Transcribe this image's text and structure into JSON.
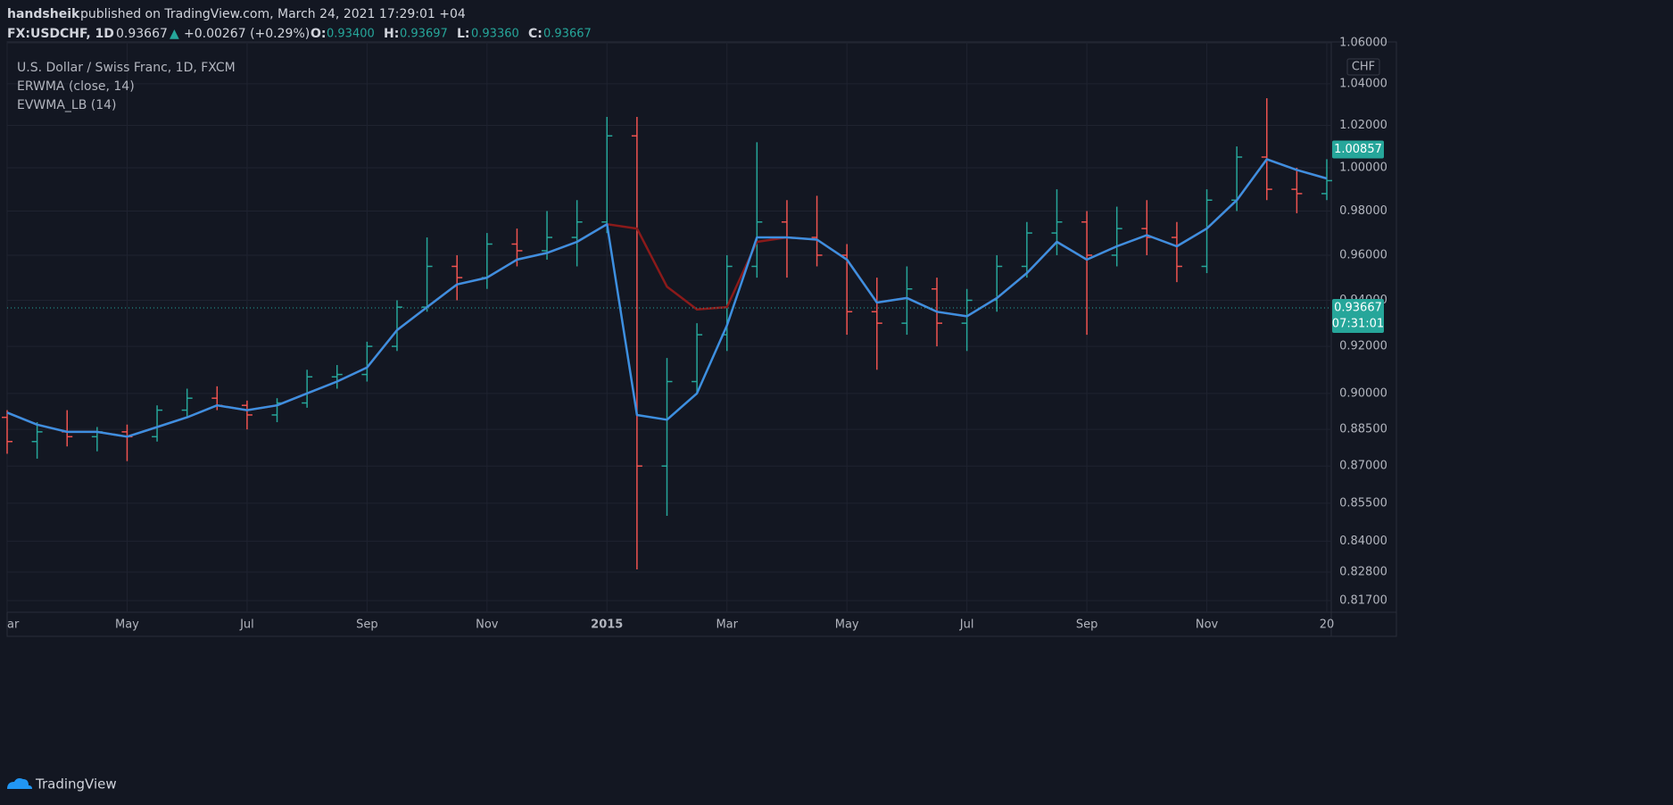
{
  "header": {
    "author": "handsheik",
    "published": "published on TradingView.com, March 24, 2021 17:29:01 +04",
    "symbol": "FX:USDCHF, 1D",
    "price": "0.93667",
    "arrow": "▲",
    "change": "+0.00267 (+0.29%)",
    "o_label": "O:",
    "o": "0.93400",
    "h_label": "H:",
    "h": "0.93697",
    "l_label": "L:",
    "l": "0.93360",
    "c_label": "C:",
    "c": "0.93667"
  },
  "footer": {
    "brand": "TradingView"
  },
  "chart_data": {
    "type": "ohlc",
    "title": "U.S. Dollar / Swiss Franc, 1D, FXCM",
    "currency": "CHF",
    "log_scale": true,
    "grid": true,
    "categories": [
      "ar",
      null,
      null,
      null,
      "May",
      null,
      null,
      null,
      "Jul",
      null,
      null,
      null,
      "Sep",
      null,
      null,
      null,
      "Nov",
      null,
      null,
      null,
      "2015",
      null,
      null,
      null,
      "Mar",
      null,
      null,
      null,
      "May",
      null,
      null,
      null,
      "Jul",
      null,
      null,
      null,
      "Sep",
      null,
      null,
      null,
      "Nov",
      null,
      null,
      null,
      "20"
    ],
    "ohlc": {
      "up_color": "#26a69a",
      "down_color": "#ef5350",
      "open": [
        0.89,
        0.88,
        0.884,
        0.882,
        0.884,
        0.882,
        0.893,
        0.898,
        0.895,
        0.891,
        0.896,
        0.907,
        0.908,
        0.92,
        0.937,
        0.955,
        0.95,
        0.965,
        0.962,
        0.968,
        0.975,
        1.015,
        0.87,
        0.905,
        0.925,
        0.955,
        0.975,
        0.968,
        0.96,
        0.935,
        0.93,
        0.945,
        0.93,
        0.94,
        0.955,
        0.97,
        0.975,
        0.96,
        0.972,
        0.968,
        0.955,
        0.985,
        1.005,
        0.99,
        0.988
      ],
      "high": [
        0.893,
        0.888,
        0.893,
        0.886,
        0.887,
        0.895,
        0.902,
        0.903,
        0.897,
        0.898,
        0.91,
        0.912,
        0.922,
        0.94,
        0.968,
        0.96,
        0.97,
        0.972,
        0.98,
        0.985,
        1.024,
        1.024,
        0.915,
        0.93,
        0.96,
        1.012,
        0.985,
        0.987,
        0.965,
        0.95,
        0.955,
        0.95,
        0.945,
        0.96,
        0.975,
        0.99,
        0.98,
        0.982,
        0.985,
        0.975,
        0.99,
        1.01,
        1.033,
        1.0,
        1.004
      ],
      "low": [
        0.875,
        0.873,
        0.878,
        0.876,
        0.872,
        0.88,
        0.89,
        0.893,
        0.885,
        0.888,
        0.894,
        0.902,
        0.905,
        0.918,
        0.935,
        0.94,
        0.945,
        0.955,
        0.958,
        0.955,
        0.97,
        0.829,
        0.85,
        0.9,
        0.918,
        0.95,
        0.95,
        0.955,
        0.925,
        0.91,
        0.925,
        0.92,
        0.918,
        0.935,
        0.95,
        0.96,
        0.925,
        0.955,
        0.96,
        0.948,
        0.952,
        0.98,
        0.985,
        0.979,
        0.985
      ],
      "close": [
        0.88,
        0.884,
        0.882,
        0.884,
        0.882,
        0.893,
        0.898,
        0.895,
        0.891,
        0.896,
        0.907,
        0.908,
        0.92,
        0.937,
        0.955,
        0.95,
        0.965,
        0.962,
        0.968,
        0.975,
        1.015,
        0.87,
        0.905,
        0.925,
        0.955,
        0.975,
        0.968,
        0.96,
        0.935,
        0.93,
        0.945,
        0.93,
        0.94,
        0.955,
        0.97,
        0.975,
        0.96,
        0.972,
        0.968,
        0.955,
        0.985,
        1.005,
        0.99,
        0.988,
        0.994
      ]
    },
    "series": [
      {
        "name": "ERWMA (close, 14)",
        "color": "#8b1a1a",
        "values": [
          0.892,
          0.887,
          0.884,
          0.884,
          0.882,
          0.886,
          0.89,
          0.895,
          0.893,
          0.895,
          0.9,
          0.905,
          0.911,
          0.927,
          0.937,
          0.947,
          0.95,
          0.958,
          0.961,
          0.966,
          0.974,
          0.972,
          0.946,
          0.936,
          0.937,
          0.966,
          0.968,
          0.967,
          0.958,
          0.939,
          0.941,
          0.935,
          0.933,
          0.941,
          0.952,
          0.966,
          0.958,
          0.964,
          0.969,
          0.964,
          0.972,
          0.985,
          1.004,
          0.999,
          0.995
        ]
      },
      {
        "name": "EVWMA_LB (14)",
        "color": "#3d8fe0",
        "values": [
          0.892,
          0.887,
          0.884,
          0.884,
          0.882,
          0.886,
          0.89,
          0.895,
          0.893,
          0.895,
          0.9,
          0.905,
          0.911,
          0.927,
          0.937,
          0.947,
          0.95,
          0.958,
          0.961,
          0.966,
          0.974,
          0.891,
          0.889,
          0.9,
          0.929,
          0.968,
          0.968,
          0.967,
          0.958,
          0.939,
          0.941,
          0.935,
          0.933,
          0.941,
          0.952,
          0.966,
          0.958,
          0.964,
          0.969,
          0.964,
          0.972,
          0.985,
          1.004,
          0.999,
          0.995
        ]
      }
    ],
    "ylim": [
      0.8126,
      1.0605
    ],
    "yticks": [
      {
        "value": 0.817,
        "label": "0.81700"
      },
      {
        "value": 0.828,
        "label": "0.82800"
      },
      {
        "value": 0.84,
        "label": "0.84000"
      },
      {
        "value": 0.855,
        "label": "0.85500"
      },
      {
        "value": 0.87,
        "label": "0.87000"
      },
      {
        "value": 0.885,
        "label": "0.88500"
      },
      {
        "value": 0.9,
        "label": "0.90000"
      },
      {
        "value": 0.92,
        "label": "0.92000"
      },
      {
        "value": 0.94,
        "label": "0.94000"
      },
      {
        "value": 0.96,
        "label": "0.96000"
      },
      {
        "value": 0.98,
        "label": "0.98000"
      },
      {
        "value": 1.0,
        "label": "1.00000"
      },
      {
        "value": 1.02,
        "label": "1.02000"
      },
      {
        "value": 1.04,
        "label": "1.04000"
      },
      {
        "value": 1.06,
        "label": "1.06000"
      }
    ],
    "markers": [
      {
        "value": 1.00857,
        "color": "#26a69a"
      },
      {
        "value": 0.93667,
        "color": "#26a69a",
        "countdown": "07:31:01"
      }
    ]
  }
}
